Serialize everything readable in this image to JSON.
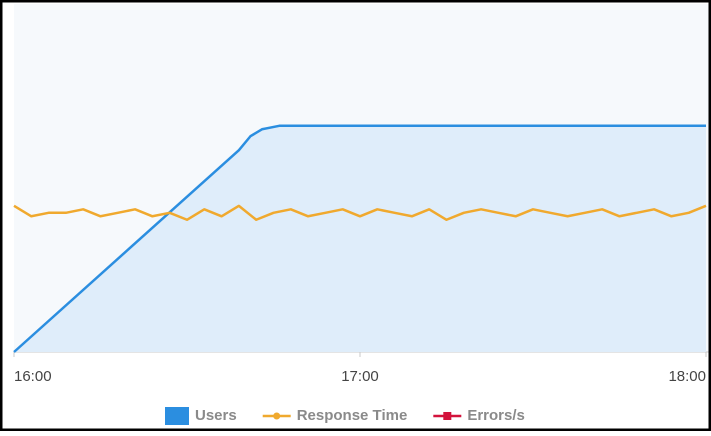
{
  "chart_data": {
    "type": "line",
    "xlim": [
      960,
      1080
    ],
    "xticks": [
      {
        "value": 960,
        "label": "16:00"
      },
      {
        "value": 1020,
        "label": "17:00"
      },
      {
        "value": 1080,
        "label": "18:00"
      }
    ],
    "ylim": [
      0,
      100
    ],
    "series": [
      {
        "name": "Users",
        "type": "area",
        "color": "#2b8ee0",
        "fill": "#dfedfa",
        "x": [
          960,
          999,
          1001,
          1003,
          1006,
          1080
        ],
        "values": [
          0,
          58,
          62,
          64,
          65,
          65
        ]
      },
      {
        "name": "Response Time",
        "type": "line",
        "marker": "circle",
        "color": "#f0a92e",
        "x": [
          960,
          963,
          966,
          969,
          972,
          975,
          978,
          981,
          984,
          987,
          990,
          993,
          996,
          999,
          1002,
          1005,
          1008,
          1011,
          1014,
          1017,
          1020,
          1023,
          1026,
          1029,
          1032,
          1035,
          1038,
          1041,
          1044,
          1047,
          1050,
          1053,
          1056,
          1059,
          1062,
          1065,
          1068,
          1071,
          1074,
          1077,
          1080
        ],
        "values": [
          42,
          39,
          40,
          40,
          41,
          39,
          40,
          41,
          39,
          40,
          38,
          41,
          39,
          42,
          38,
          40,
          41,
          39,
          40,
          41,
          39,
          41,
          40,
          39,
          41,
          38,
          40,
          41,
          40,
          39,
          41,
          40,
          39,
          40,
          41,
          39,
          40,
          41,
          39,
          40,
          42
        ]
      },
      {
        "name": "Errors/s",
        "type": "line",
        "marker": "square",
        "color": "#d3133c",
        "x": [],
        "values": []
      }
    ]
  }
}
